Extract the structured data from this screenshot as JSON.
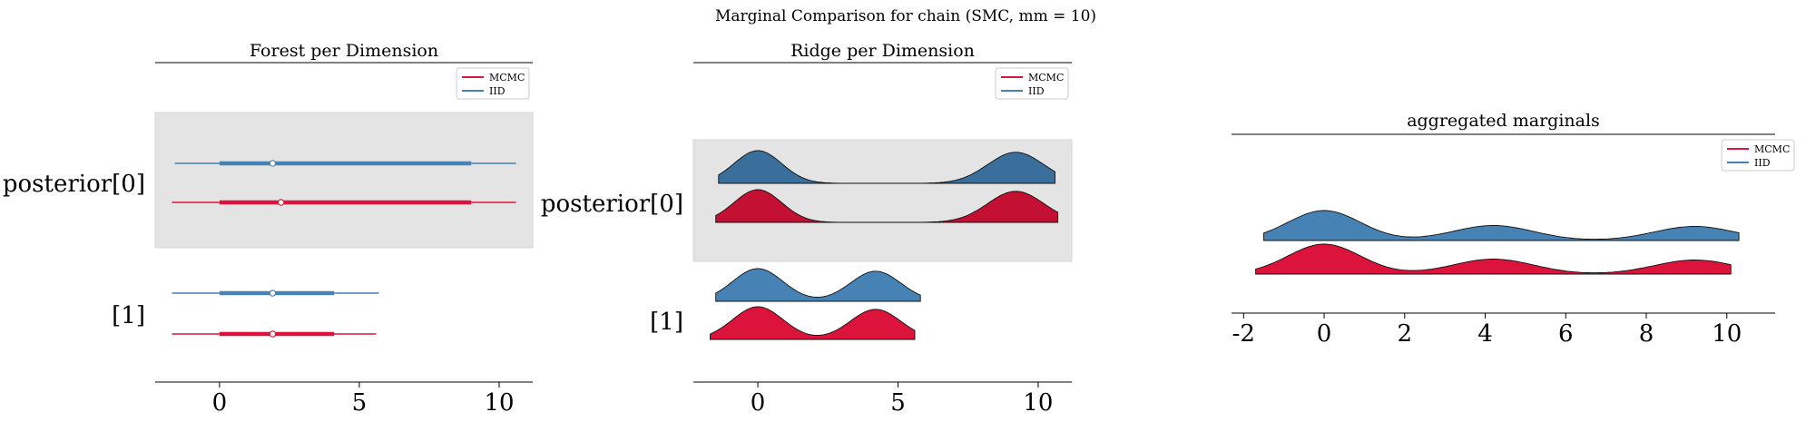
{
  "figure": {
    "suptitle": "Marginal Comparison for chain (SMC, mm = 10)"
  },
  "colors": {
    "mcmc": "#dc143c",
    "iid": "#4682b4",
    "mcmc_dark": "#c41032",
    "iid_dark": "#3a6f9c",
    "highlight": "#e4e4e4"
  },
  "legend": {
    "entries": [
      "MCMC",
      "IID"
    ]
  },
  "chart_data": [
    {
      "type": "forest",
      "title": "Forest per Dimension",
      "xlim": [
        -2.3,
        11.2
      ],
      "xticks": [
        0,
        5,
        10
      ],
      "row_labels": [
        "posterior[0]",
        "[1]"
      ],
      "rows": [
        {
          "label": "posterior[0]",
          "series": [
            {
              "name": "IID",
              "hdi": [
                -1.6,
                10.6
              ],
              "iqr": [
                0.0,
                9.0
              ],
              "median": 1.9
            },
            {
              "name": "MCMC",
              "hdi": [
                -1.7,
                10.6
              ],
              "iqr": [
                0.0,
                9.0
              ],
              "median": 2.2
            }
          ]
        },
        {
          "label": "[1]",
          "series": [
            {
              "name": "IID",
              "hdi": [
                -1.7,
                5.7
              ],
              "iqr": [
                0.0,
                4.1
              ],
              "median": 1.9
            },
            {
              "name": "MCMC",
              "hdi": [
                -1.7,
                5.6
              ],
              "iqr": [
                0.0,
                4.1
              ],
              "median": 1.9
            }
          ]
        }
      ]
    },
    {
      "type": "ridge",
      "title": "Ridge per Dimension",
      "xlim": [
        -2.3,
        11.2
      ],
      "xticks": [
        0,
        5,
        10
      ],
      "row_labels": [
        "posterior[0]",
        "[1]"
      ],
      "rows": [
        {
          "label": "posterior[0]",
          "series": [
            {
              "name": "IID",
              "range": [
                -1.4,
                10.6
              ],
              "modes": [
                [
                  0.0,
                  0.85,
                  1.0
                ],
                [
                  9.2,
                  1.0,
                  0.95
                ]
              ]
            },
            {
              "name": "MCMC",
              "range": [
                -1.5,
                10.7
              ],
              "modes": [
                [
                  0.0,
                  0.85,
                  1.0
                ],
                [
                  9.2,
                  1.0,
                  0.95
                ]
              ]
            }
          ]
        },
        {
          "label": "[1]",
          "series": [
            {
              "name": "IID",
              "range": [
                -1.5,
                5.8
              ],
              "modes": [
                [
                  0.0,
                  0.9,
                  1.0
                ],
                [
                  4.2,
                  0.9,
                  0.92
                ]
              ]
            },
            {
              "name": "MCMC",
              "range": [
                -1.7,
                5.6
              ],
              "modes": [
                [
                  0.0,
                  0.9,
                  1.0
                ],
                [
                  4.2,
                  0.9,
                  0.92
                ]
              ]
            }
          ]
        }
      ]
    },
    {
      "type": "ridge",
      "title": "aggregated marginals",
      "xlim": [
        -2.3,
        11.2
      ],
      "xticks": [
        -2,
        0,
        2,
        4,
        6,
        8,
        10
      ],
      "series": [
        {
          "name": "IID",
          "range": [
            -1.5,
            10.3
          ],
          "modes": [
            [
              0.0,
              0.9,
              1.0
            ],
            [
              4.2,
              1.0,
              0.5
            ],
            [
              9.2,
              1.0,
              0.47
            ]
          ]
        },
        {
          "name": "MCMC",
          "range": [
            -1.7,
            10.1
          ],
          "modes": [
            [
              0.0,
              0.9,
              1.0
            ],
            [
              4.2,
              1.0,
              0.5
            ],
            [
              9.2,
              1.0,
              0.47
            ]
          ]
        }
      ]
    }
  ]
}
